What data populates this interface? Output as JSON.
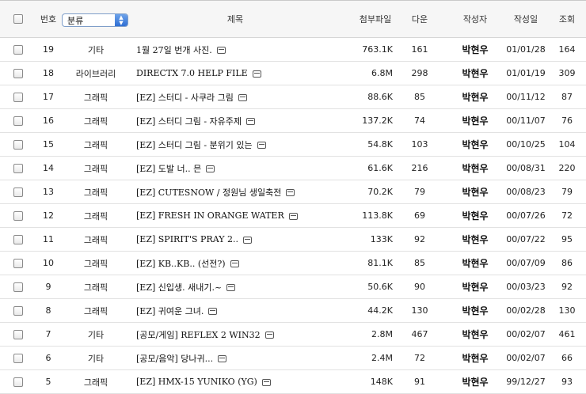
{
  "header": {
    "number_label": "번호",
    "category_select_value": "분류",
    "title_label": "제목",
    "attachment_label": "첨부파일",
    "download_label": "다운",
    "author_label": "작성자",
    "date_label": "작성일",
    "views_label": "조회"
  },
  "rows": [
    {
      "num": "19",
      "category": "기타",
      "title": "1월 27일 번개 사진.",
      "size": "763.1K",
      "downloads": "161",
      "author": "박현우",
      "date": "01/01/28",
      "views": "164"
    },
    {
      "num": "18",
      "category": "라이브러리",
      "title": "DIRECTX 7.0 HELP FILE",
      "size": "6.8M",
      "downloads": "298",
      "author": "박현우",
      "date": "01/01/19",
      "views": "309"
    },
    {
      "num": "17",
      "category": "그래픽",
      "title": "[EZ] 스터디 - 사쿠라 그림",
      "size": "88.6K",
      "downloads": "85",
      "author": "박현우",
      "date": "00/11/12",
      "views": "87"
    },
    {
      "num": "16",
      "category": "그래픽",
      "title": "[EZ] 스터디 그림 - 자유주제",
      "size": "137.2K",
      "downloads": "74",
      "author": "박현우",
      "date": "00/11/07",
      "views": "76"
    },
    {
      "num": "15",
      "category": "그래픽",
      "title": "[EZ] 스터디 그림 - 분위기 있는",
      "size": "54.8K",
      "downloads": "103",
      "author": "박현우",
      "date": "00/10/25",
      "views": "104"
    },
    {
      "num": "14",
      "category": "그래픽",
      "title": "[EZ] 도발 너.. 믄",
      "size": "61.6K",
      "downloads": "216",
      "author": "박현우",
      "date": "00/08/31",
      "views": "220"
    },
    {
      "num": "13",
      "category": "그래픽",
      "title": "[EZ] CUTESNOW / 정원님 생일축전",
      "size": "70.2K",
      "downloads": "79",
      "author": "박현우",
      "date": "00/08/23",
      "views": "79"
    },
    {
      "num": "12",
      "category": "그래픽",
      "title": "[EZ] FRESH IN ORANGE WATER",
      "size": "113.8K",
      "downloads": "69",
      "author": "박현우",
      "date": "00/07/26",
      "views": "72"
    },
    {
      "num": "11",
      "category": "그래픽",
      "title": "[EZ] SPIRIT'S PRAY 2..",
      "size": "133K",
      "downloads": "92",
      "author": "박현우",
      "date": "00/07/22",
      "views": "95"
    },
    {
      "num": "10",
      "category": "그래픽",
      "title": "[EZ] KB..KB.. (선전?)",
      "size": "81.1K",
      "downloads": "85",
      "author": "박현우",
      "date": "00/07/09",
      "views": "86"
    },
    {
      "num": "9",
      "category": "그래픽",
      "title": "[EZ] 신입생. 새내기.~",
      "size": "50.6K",
      "downloads": "90",
      "author": "박현우",
      "date": "00/03/23",
      "views": "92"
    },
    {
      "num": "8",
      "category": "그래픽",
      "title": "[EZ] 귀여운 그녀.",
      "size": "44.2K",
      "downloads": "130",
      "author": "박현우",
      "date": "00/02/28",
      "views": "130"
    },
    {
      "num": "7",
      "category": "기타",
      "title": "[공모/게임] REFLEX 2 WIN32",
      "size": "2.8M",
      "downloads": "467",
      "author": "박현우",
      "date": "00/02/07",
      "views": "461"
    },
    {
      "num": "6",
      "category": "기타",
      "title": "[공모/음악] 당나귀...",
      "size": "2.4M",
      "downloads": "72",
      "author": "박현우",
      "date": "00/02/07",
      "views": "66"
    },
    {
      "num": "5",
      "category": "그래픽",
      "title": "[EZ] HMX-15 YUNIKO (YG)",
      "size": "148K",
      "downloads": "91",
      "author": "박현우",
      "date": "99/12/27",
      "views": "93"
    }
  ]
}
